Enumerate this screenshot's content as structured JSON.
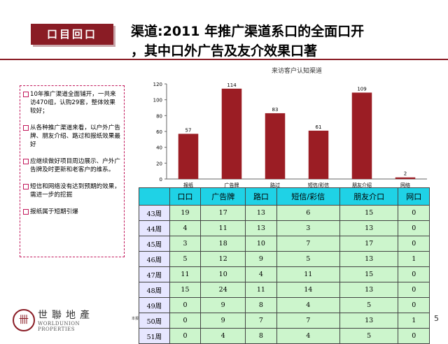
{
  "badge": "口目回口",
  "headline": {
    "line1": "渠道:2011 年推广渠道系口的全面口开",
    "line2": "，其中口外广告及友介效果口著"
  },
  "notes": [
    "10年推广渠道全面铺开，一共来访470组，认购29套，整体效果较好；",
    "从各种推广渠道来看，以户外广告牌、朋友介绍、路过和报纸效果最好",
    "应继续做好项目周边展示、户外广告牌及时更新和老客户的维系。",
    "短信和网络没有达到预期的效果，需进一步的挖掘",
    "报纸属于短期引爆"
  ],
  "chart_data": {
    "type": "bar",
    "title": "来访客户认知渠道",
    "categories": [
      "报纸",
      "广告牌",
      "路过",
      "短信/彩信",
      "朋友介绍",
      "网络"
    ],
    "values": [
      57,
      114,
      83,
      61,
      109,
      2
    ],
    "ylim": [
      0,
      120
    ],
    "yticks": [
      0,
      20,
      40,
      60,
      80,
      100,
      120
    ],
    "bar_color": "#9b1d24",
    "grid": false
  },
  "table": {
    "headers": [
      "",
      "口口",
      "广告牌",
      "路口",
      "短信/彩信",
      "朋友介口",
      "网口"
    ],
    "rows": [
      {
        "week": "43周",
        "values": [
          "19",
          "17",
          "13",
          "6",
          "15",
          "0"
        ]
      },
      {
        "week": "44周",
        "values": [
          "4",
          "11",
          "13",
          "3",
          "13",
          "0"
        ]
      },
      {
        "week": "45周",
        "values": [
          "3",
          "18",
          "10",
          "7",
          "17",
          "0"
        ]
      },
      {
        "week": "46周",
        "values": [
          "5",
          "12",
          "9",
          "5",
          "13",
          "1"
        ]
      },
      {
        "week": "47周",
        "values": [
          "11",
          "10",
          "4",
          "11",
          "15",
          "0"
        ]
      },
      {
        "week": "48周",
        "values": [
          "15",
          "24",
          "11",
          "14",
          "13",
          "0"
        ]
      },
      {
        "week": "49周",
        "values": [
          "0",
          "9",
          "8",
          "4",
          "5",
          "0"
        ]
      },
      {
        "week": "50周",
        "values": [
          "0",
          "9",
          "7",
          "7",
          "13",
          "1"
        ]
      },
      {
        "week": "51周",
        "values": [
          "0",
          "4",
          "8",
          "4",
          "5",
          "0"
        ]
      }
    ]
  },
  "logo": {
    "cn": "世聯地產",
    "en": "WORLDUNION PROPERTIES"
  },
  "footer_note": "本报",
  "page_number": "5"
}
